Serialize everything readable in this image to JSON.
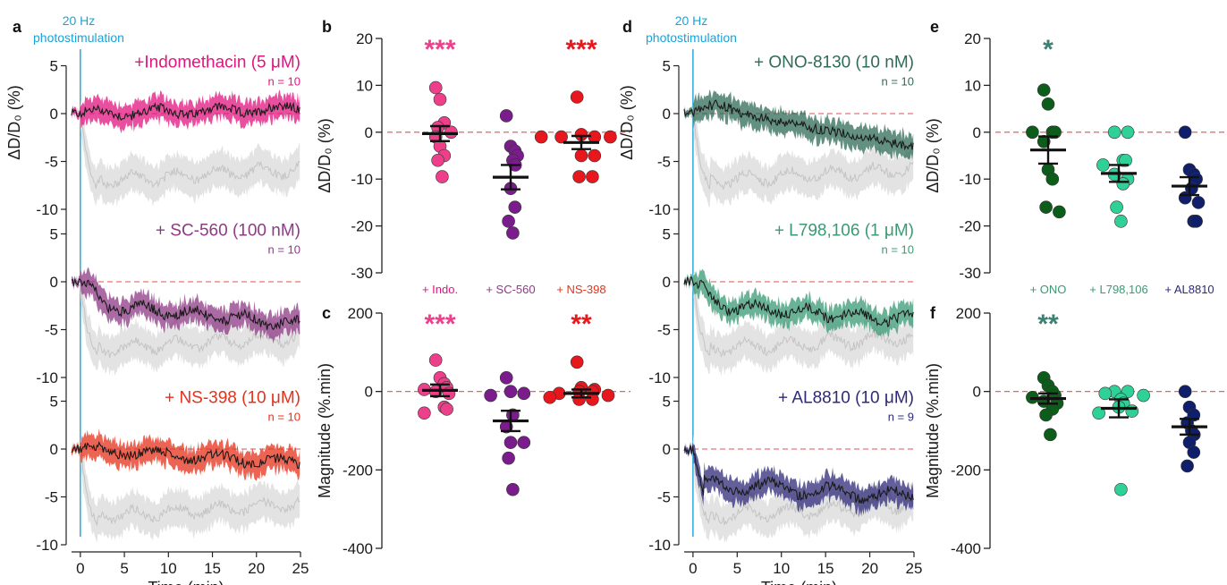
{
  "colors": {
    "indo": "#e0157f",
    "sc560": "#8e3a85",
    "ns398": "#e5321b",
    "indo_dot": "#ee3f8a",
    "sc560_dot": "#7a1c8c",
    "ns398_dot": "#e8161d",
    "ono": "#2f6b55",
    "l798": "#3a9a74",
    "al8810": "#2e2a78",
    "ono_dot": "#0d5d1a",
    "l798_dot": "#2fd196",
    "al8810_dot": "#0f1f6b",
    "control": "#c9c9c9",
    "stim": "#1aa3d9",
    "zero": "#e05050",
    "trace": "#1a1a1a",
    "star_ono": "#3e7f74"
  },
  "panel_labels": {
    "a": "a",
    "b": "b",
    "c": "c",
    "d": "d",
    "e": "e",
    "f": "f"
  },
  "stim_label": {
    "line1": "20 Hz",
    "line2": "photostimulation"
  },
  "ts_axes": {
    "ylabel": "ΔD/D₀ (%)",
    "xlabel": "Time (min)",
    "xticks": [
      "0",
      "5",
      "10",
      "15",
      "20",
      "25"
    ],
    "yticks": [
      "5",
      "0",
      "-5",
      "-10"
    ]
  },
  "traces_a": [
    {
      "name": "+Indomethacin (5 μM)",
      "n": "n = 10",
      "color": "indo",
      "shape": "flat",
      "end": 0.5
    },
    {
      "name": "+ SC-560 (100 nM)",
      "n": "n = 10",
      "color": "sc560",
      "shape": "dip",
      "end": -4.5
    },
    {
      "name": "+ NS-398 (10 μM)",
      "n": "n = 10",
      "color": "ns398",
      "shape": "flat",
      "end": -1.5
    }
  ],
  "traces_d": [
    {
      "name": "+ ONO-8130 (10 nM)",
      "n": "n = 10",
      "color": "ono",
      "shape": "drift",
      "end": -3.5
    },
    {
      "name": "+ L798,106 (1 μM)",
      "n": "n = 10",
      "color": "l798",
      "shape": "dip",
      "end": -4.0
    },
    {
      "name": "+ AL8810 (10 μM)",
      "n": "n = 9",
      "color": "al8810",
      "shape": "drop",
      "end": -5.0
    }
  ],
  "scatter_b": {
    "ylabel": "ΔD/D₀ (%)",
    "yticks": [
      "20",
      "10",
      "0",
      "-10",
      "-20",
      "-30"
    ],
    "ylim": [
      -30,
      20
    ],
    "stars": [
      {
        "text": "***",
        "group": 0,
        "color": "indo_dot"
      },
      {
        "text": "***",
        "group": 2,
        "color": "ns398_dot"
      }
    ]
  },
  "scatter_c": {
    "ylabel": "Magnitude (%.min)",
    "yticks": [
      "200",
      "0",
      "-200",
      "-400"
    ],
    "ylim": [
      -400,
      200
    ],
    "group_labels": [
      {
        "text": "+ Indo.",
        "color": "indo"
      },
      {
        "text": "+ SC-560",
        "color": "sc560"
      },
      {
        "text": "+ NS-398",
        "color": "ns398"
      }
    ],
    "stars": [
      {
        "text": "***",
        "group": 0,
        "color": "indo_dot"
      },
      {
        "text": "**",
        "group": 2,
        "color": "ns398_dot"
      }
    ]
  },
  "scatter_e": {
    "ylabel": "ΔD/D₀ (%)",
    "yticks": [
      "20",
      "10",
      "0",
      "-10",
      "-20",
      "-30"
    ],
    "ylim": [
      -30,
      20
    ],
    "stars": [
      {
        "text": "*",
        "group": 0,
        "color": "star_ono"
      }
    ]
  },
  "scatter_f": {
    "ylabel": "Magnitude (%.min)",
    "yticks": [
      "200",
      "0",
      "-200",
      "-400"
    ],
    "ylim": [
      -400,
      200
    ],
    "group_labels": [
      {
        "text": "+ ONO",
        "color": "l798"
      },
      {
        "text": "+ L798,106",
        "color": "l798"
      },
      {
        "text": "+ AL8810",
        "color": "al8810"
      }
    ],
    "stars": [
      {
        "text": "**",
        "group": 0,
        "color": "star_ono"
      }
    ]
  },
  "chart_data": [
    {
      "panel": "b",
      "type": "scatter",
      "ylabel": "ΔD/D₀ (%)",
      "ylim": [
        -30,
        20
      ],
      "series": [
        {
          "name": "+ Indo.",
          "color": "indo_dot",
          "values": [
            9.5,
            7,
            2,
            1,
            0,
            -1,
            -3,
            -5,
            -6,
            -9.5
          ],
          "mean": -0.3,
          "sem": 1.6
        },
        {
          "name": "+ SC-560",
          "color": "sc560_dot",
          "values": [
            3.5,
            -3,
            -4,
            -5,
            -6,
            -7,
            -12,
            -16,
            -19,
            -21.5
          ],
          "mean": -9.6,
          "sem": 2.6
        },
        {
          "name": "+ NS-398",
          "color": "ns398_dot",
          "values": [
            7.5,
            -0.5,
            -1,
            -1,
            -1,
            -1,
            -5,
            -5,
            -9.5,
            -9.5
          ],
          "mean": -2.2,
          "sem": 1.4
        }
      ]
    },
    {
      "panel": "c",
      "type": "scatter",
      "ylabel": "Magnitude (%.min)",
      "ylim": [
        -400,
        200
      ],
      "series": [
        {
          "name": "+ Indo.",
          "color": "indo_dot",
          "values": [
            80,
            35,
            20,
            10,
            5,
            0,
            -5,
            -40,
            -45,
            -55
          ],
          "mean": 3,
          "sem": 15
        },
        {
          "name": "+ SC-560",
          "color": "sc560_dot",
          "values": [
            35,
            0,
            -5,
            -10,
            -60,
            -90,
            -130,
            -130,
            -170,
            -250
          ],
          "mean": -75,
          "sem": 26
        },
        {
          "name": "+ NS-398",
          "color": "ns398_dot",
          "values": [
            75,
            10,
            5,
            0,
            0,
            -5,
            -10,
            -15,
            -20,
            -20
          ],
          "mean": -5,
          "sem": 10
        }
      ]
    },
    {
      "panel": "e",
      "type": "scatter",
      "ylabel": "ΔD/D₀ (%)",
      "ylim": [
        -30,
        20
      ],
      "series": [
        {
          "name": "+ ONO",
          "color": "ono_dot",
          "values": [
            9,
            6,
            0,
            0,
            0,
            -2,
            -8,
            -10,
            -16,
            -17
          ],
          "mean": -3.8,
          "sem": 2.9
        },
        {
          "name": "+ L798,106",
          "color": "l798_dot",
          "values": [
            0,
            0,
            -6,
            -6,
            -7,
            -9,
            -10,
            -11,
            -16,
            -19
          ],
          "mean": -8.8,
          "sem": 1.8
        },
        {
          "name": "+ AL8810",
          "color": "al8810_dot",
          "values": [
            0,
            -8,
            -9,
            -10,
            -12,
            -14,
            -15,
            -19,
            -19
          ],
          "mean": -11.5,
          "sem": 1.9
        }
      ]
    },
    {
      "panel": "f",
      "type": "scatter",
      "ylabel": "Magnitude (%.min)",
      "ylim": [
        -400,
        200
      ],
      "series": [
        {
          "name": "+ ONO",
          "color": "ono_dot",
          "values": [
            35,
            15,
            0,
            -10,
            -15,
            -25,
            -30,
            -45,
            -60,
            -110
          ],
          "mean": -18,
          "sem": 13
        },
        {
          "name": "+ L798,106",
          "color": "l798_dot",
          "values": [
            0,
            0,
            -5,
            -10,
            -20,
            -30,
            -40,
            -50,
            -55,
            -250
          ],
          "mean": -43,
          "sem": 23
        },
        {
          "name": "+ AL8810",
          "color": "al8810_dot",
          "values": [
            0,
            -40,
            -60,
            -80,
            -100,
            -110,
            -130,
            -155,
            -190
          ],
          "mean": -90,
          "sem": 20
        }
      ]
    }
  ]
}
